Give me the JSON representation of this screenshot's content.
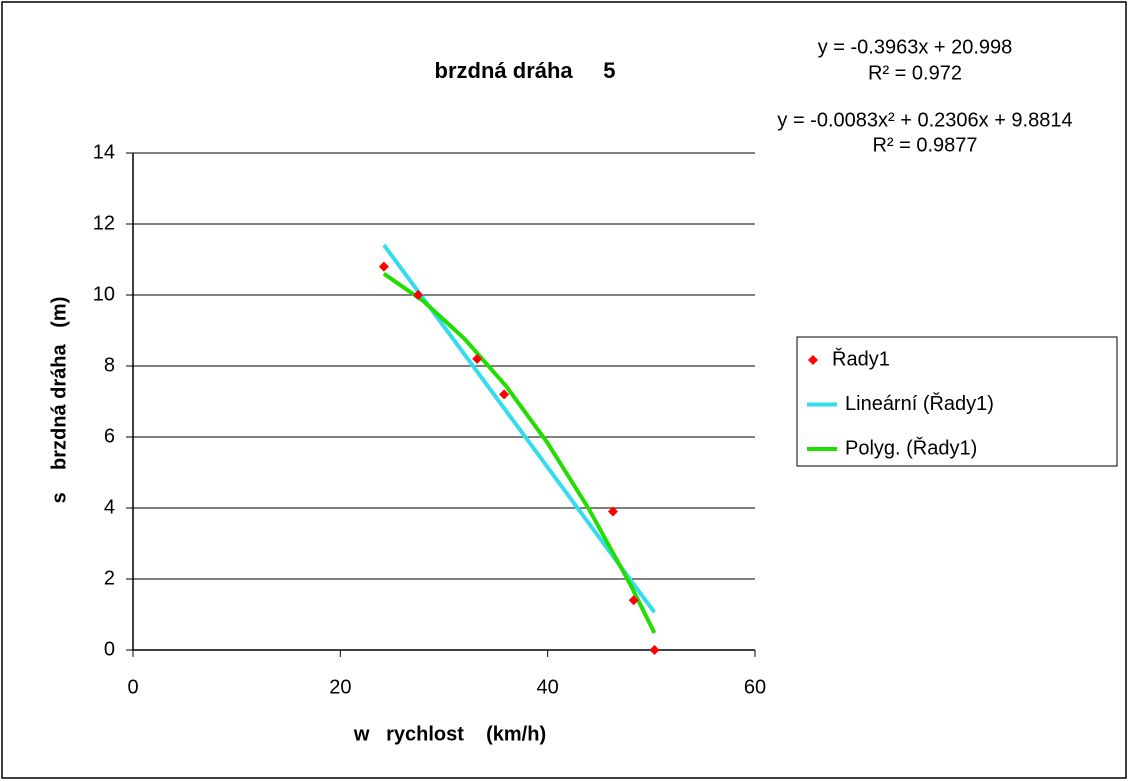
{
  "chart_data": {
    "type": "scatter",
    "title": "brzdná dráha     5",
    "x_label": "w   rychlost    (km/h)",
    "y_label": "s    brzdná dráha   (m)",
    "annotations": [
      "y = -0.3963x + 20.998",
      "R² = 0.972",
      "y = -0.0083x² + 0.2306x + 9.8814",
      "R² = 0.9877"
    ],
    "xlim": [
      0,
      60
    ],
    "xticks": [
      0,
      20,
      40,
      60
    ],
    "ylim": [
      0,
      14
    ],
    "yticks": [
      0,
      2,
      4,
      6,
      8,
      10,
      12,
      14
    ],
    "grid": true,
    "legend": "right",
    "series": [
      {
        "name": "Řady1",
        "style": "markers",
        "color": "#ff0000",
        "x": [
          24.2,
          27.5,
          33.2,
          35.8,
          46.3,
          48.3,
          50.3
        ],
        "values": [
          10.8,
          10.0,
          8.2,
          7.2,
          3.9,
          1.4,
          0
        ]
      },
      {
        "name": "Lineární (Řady1)",
        "style": "line",
        "color": "#33ddee",
        "x": [
          24.2,
          50.3
        ],
        "values": [
          11.41,
          1.06
        ]
      },
      {
        "name": "Polyg. (Řady1)",
        "style": "line",
        "color": "#22dd00",
        "x": [
          24.2,
          28,
          32,
          36,
          40,
          44,
          48,
          50.3
        ],
        "values": [
          10.6,
          9.83,
          8.76,
          7.43,
          5.83,
          3.96,
          1.83,
          0.48
        ]
      }
    ]
  }
}
